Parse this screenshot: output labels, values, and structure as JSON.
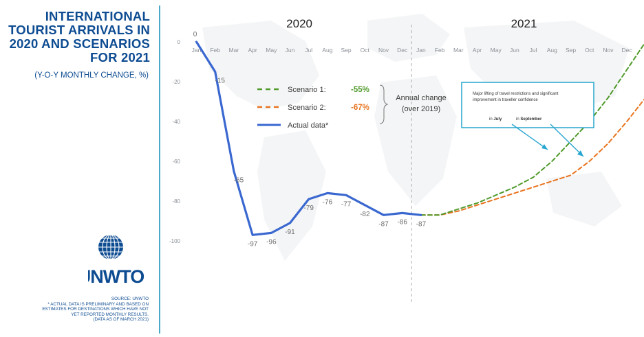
{
  "title_lines": [
    "INTERNATIONAL",
    "TOURIST ARRIVALS IN",
    "2020 AND SCENARIOS",
    "FOR 2021"
  ],
  "subtitle": "(Y-O-Y MONTHLY CHANGE, %)",
  "logo_text": "UNWTO",
  "source_lines": [
    "SOURCE: UNWTO",
    "* ACTUAL DATA IS PRELIMINARY AND BASED ON",
    "ESTIMATES FOR DESTINATIONS WHICH HAVE NOT",
    "YET REPORTED MONTHLY RESULTS.",
    "(DATA AS OF MARCH 2021)"
  ],
  "colors": {
    "title": "#0e4c92",
    "actual": "#3a68d0",
    "scenario1": "#4f9a2a",
    "scenario2": "#e8731e",
    "annotation": "#29a6cf",
    "divider": "#4aa8c8"
  },
  "chart_data": {
    "type": "line",
    "year_labels": [
      "2020",
      "2021"
    ],
    "months": [
      "Jan",
      "Feb",
      "Mar",
      "Apr",
      "May",
      "Jun",
      "Jul",
      "Aug",
      "Sep",
      "Oct",
      "Nov",
      "Dec",
      "Jan",
      "Feb",
      "Mar",
      "Apr",
      "May",
      "Jun",
      "Jul",
      "Aug",
      "Sep",
      "Oct",
      "Nov",
      "Dec"
    ],
    "yticks": [
      0,
      -20,
      -40,
      -60,
      -80,
      -100
    ],
    "ylim": [
      -110,
      0
    ],
    "series": [
      {
        "key": "actual",
        "name": "Actual data*",
        "style": "solid",
        "values": [
          0,
          -15,
          -65,
          -97,
          -96,
          -91,
          -79,
          -76,
          -77,
          -82,
          -87,
          -86,
          -87
        ],
        "labels": [
          "0",
          "-15",
          "-65",
          "-97",
          "-96",
          "-91",
          "-79",
          "-76",
          "-77",
          "-82",
          "-87",
          "-86",
          "-87"
        ]
      },
      {
        "key": "scenario1",
        "name": "Scenario 1:",
        "annual_change": "-55%",
        "style": "dashed",
        "x_start": 12,
        "values": [
          -87,
          -87,
          -84,
          -81,
          -77,
          -73,
          -68,
          -60,
          -50,
          -40,
          -28,
          -14,
          0
        ]
      },
      {
        "key": "scenario2",
        "name": "Scenario 2:",
        "annual_change": "-67%",
        "style": "dashed",
        "x_start": 12,
        "values": [
          -87,
          -87,
          -85,
          -82,
          -79,
          -76,
          -73,
          -70,
          -67,
          -60,
          -51,
          -40,
          -28
        ]
      }
    ],
    "legend_bracket_text": [
      "Annual change",
      "(over 2019)"
    ],
    "annotation": {
      "text_lines": [
        "Major lifting of travel restrictions and significant",
        "improvement in traveller confidence"
      ],
      "july_prefix": "in ",
      "july": "July",
      "september_prefix": "in ",
      "september": "September"
    }
  }
}
